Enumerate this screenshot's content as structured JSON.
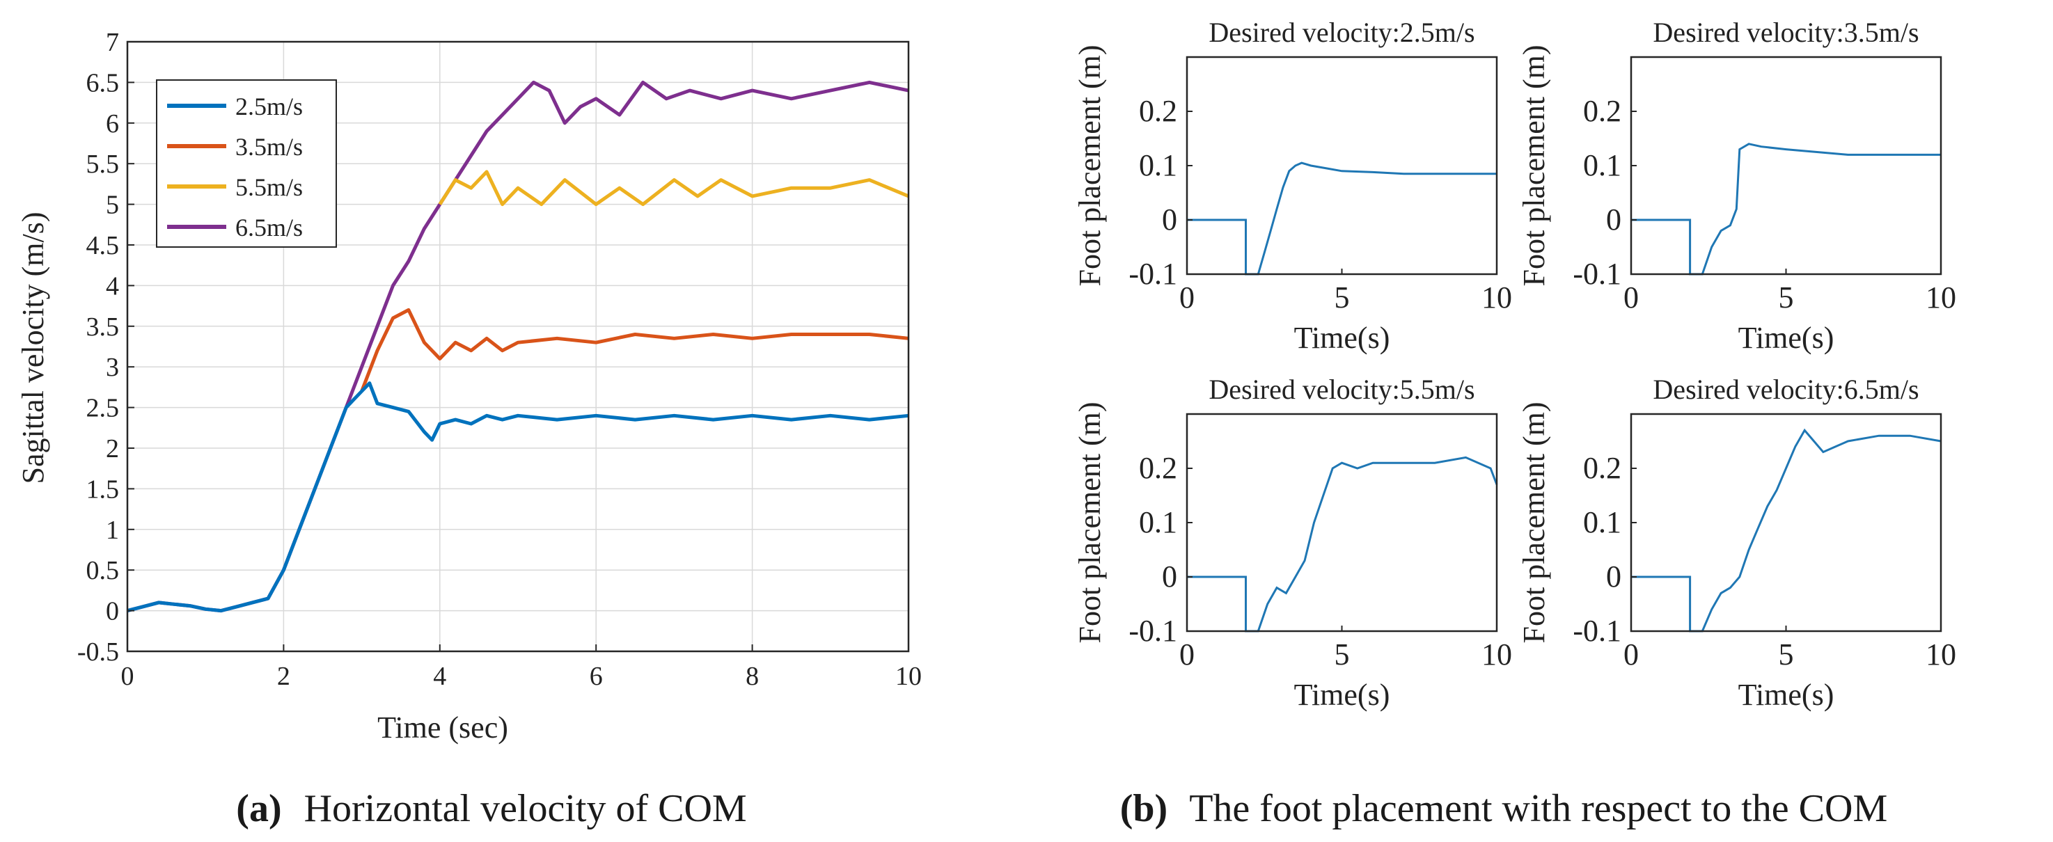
{
  "left": {
    "title": "",
    "xlabel": "Time (sec)",
    "ylabel": "Sagittal velocity (m/s)",
    "caption_letter": "(a)",
    "caption_text": "Horizontal velocity of COM"
  },
  "right": {
    "caption_letter": "(b)",
    "caption_text": "The foot placement with respect to the COM"
  },
  "colors": {
    "s25": "#0072BD",
    "s35": "#D95319",
    "s55": "#EDB120",
    "s65": "#7E2F8E",
    "foot": "#1f77b4"
  },
  "chart_data": [
    {
      "type": "line",
      "title": "",
      "xlabel": "Time (sec)",
      "ylabel": "Sagittal velocity (m/s)",
      "xlim": [
        0,
        10
      ],
      "ylim": [
        -0.5,
        7
      ],
      "xticks": [
        "0",
        "2",
        "4",
        "6",
        "8",
        "10"
      ],
      "yticks": [
        "-0.5",
        "0",
        "0.5",
        "1",
        "1.5",
        "2",
        "2.5",
        "3",
        "3.5",
        "4",
        "4.5",
        "5",
        "5.5",
        "6",
        "6.5",
        "7"
      ],
      "grid": true,
      "legend": "top-left",
      "series": [
        {
          "name": "2.5m/s",
          "color": "#0072BD",
          "x": [
            0,
            0.2,
            0.4,
            0.6,
            0.8,
            1.0,
            1.2,
            1.4,
            1.6,
            1.8,
            2.0,
            2.2,
            2.4,
            2.6,
            2.8,
            3.0,
            3.1,
            3.2,
            3.4,
            3.6,
            3.8,
            3.9,
            4.0,
            4.2,
            4.4,
            4.6,
            4.8,
            5.0,
            5.5,
            6.0,
            6.5,
            7.0,
            7.5,
            8.0,
            8.5,
            9.0,
            9.5,
            10.0
          ],
          "y": [
            0.0,
            0.05,
            0.1,
            0.08,
            0.06,
            0.02,
            0.0,
            0.05,
            0.1,
            0.15,
            0.5,
            1.0,
            1.5,
            2.0,
            2.5,
            2.7,
            2.8,
            2.55,
            2.5,
            2.45,
            2.2,
            2.1,
            2.3,
            2.35,
            2.3,
            2.4,
            2.35,
            2.4,
            2.35,
            2.4,
            2.35,
            2.4,
            2.35,
            2.4,
            2.35,
            2.4,
            2.35,
            2.4
          ]
        },
        {
          "name": "3.5m/s",
          "color": "#D95319",
          "x": [
            3.0,
            3.2,
            3.4,
            3.6,
            3.8,
            4.0,
            4.2,
            4.4,
            4.6,
            4.8,
            5.0,
            5.5,
            6.0,
            6.5,
            7.0,
            7.5,
            8.0,
            8.5,
            9.0,
            9.5,
            10.0
          ],
          "y": [
            2.7,
            3.2,
            3.6,
            3.7,
            3.3,
            3.1,
            3.3,
            3.2,
            3.35,
            3.2,
            3.3,
            3.35,
            3.3,
            3.4,
            3.35,
            3.4,
            3.35,
            3.4,
            3.4,
            3.4,
            3.35
          ]
        },
        {
          "name": "5.5m/s",
          "color": "#EDB120",
          "x": [
            4.0,
            4.2,
            4.4,
            4.6,
            4.8,
            5.0,
            5.3,
            5.6,
            6.0,
            6.3,
            6.6,
            7.0,
            7.3,
            7.6,
            8.0,
            8.5,
            9.0,
            9.5,
            10.0
          ],
          "y": [
            5.0,
            5.3,
            5.2,
            5.4,
            5.0,
            5.2,
            5.0,
            5.3,
            5.0,
            5.2,
            5.0,
            5.3,
            5.1,
            5.3,
            5.1,
            5.2,
            5.2,
            5.3,
            5.1
          ]
        },
        {
          "name": "6.5m/s",
          "color": "#7E2F8E",
          "x": [
            0,
            0.2,
            0.4,
            0.6,
            0.8,
            1.0,
            1.2,
            1.4,
            1.6,
            1.8,
            2.0,
            2.2,
            2.4,
            2.6,
            2.8,
            3.0,
            3.2,
            3.4,
            3.6,
            3.8,
            4.0,
            4.2,
            4.4,
            4.6,
            4.8,
            5.0,
            5.2,
            5.4,
            5.6,
            5.8,
            6.0,
            6.3,
            6.6,
            6.9,
            7.2,
            7.6,
            8.0,
            8.5,
            9.0,
            9.5,
            10.0
          ],
          "y": [
            0.0,
            0.05,
            0.1,
            0.08,
            0.06,
            0.02,
            0.0,
            0.05,
            0.1,
            0.15,
            0.5,
            1.0,
            1.5,
            2.0,
            2.5,
            3.0,
            3.5,
            4.0,
            4.3,
            4.7,
            5.0,
            5.3,
            5.6,
            5.9,
            6.1,
            6.3,
            6.5,
            6.4,
            6.0,
            6.2,
            6.3,
            6.1,
            6.5,
            6.3,
            6.4,
            6.3,
            6.4,
            6.3,
            6.4,
            6.5,
            6.4
          ]
        }
      ]
    },
    {
      "type": "line",
      "title": "Desired velocity:2.5m/s",
      "xlabel": "Time(s)",
      "ylabel": "Foot placement (m)",
      "xlim": [
        0,
        10
      ],
      "ylim": [
        -0.1,
        0.3
      ],
      "xticks": [
        "0",
        "5",
        "10"
      ],
      "yticks": [
        "-0.1",
        "0",
        "0.1",
        "0.2"
      ],
      "series": [
        {
          "name": "foot placement",
          "x": [
            0,
            1.9,
            1.9,
            2.3,
            2.5,
            2.7,
            2.9,
            3.1,
            3.3,
            3.5,
            3.7,
            4.0,
            4.5,
            5.0,
            6.0,
            7.0,
            8.0,
            9.0,
            10.0
          ],
          "y": [
            0,
            0,
            -0.1,
            -0.1,
            -0.06,
            -0.02,
            0.02,
            0.06,
            0.09,
            0.1,
            0.105,
            0.1,
            0.095,
            0.09,
            0.088,
            0.085,
            0.085,
            0.085,
            0.085
          ]
        }
      ]
    },
    {
      "type": "line",
      "title": "Desired velocity:3.5m/s",
      "xlabel": "Time(s)",
      "ylabel": "Foot placement (m)",
      "xlim": [
        0,
        10
      ],
      "ylim": [
        -0.1,
        0.3
      ],
      "xticks": [
        "0",
        "5",
        "10"
      ],
      "yticks": [
        "-0.1",
        "0",
        "0.1",
        "0.2"
      ],
      "series": [
        {
          "name": "foot placement",
          "x": [
            0,
            1.9,
            1.9,
            2.3,
            2.6,
            2.9,
            3.2,
            3.4,
            3.5,
            3.8,
            4.2,
            5.0,
            6.0,
            7.0,
            8.0,
            9.0,
            10.0
          ],
          "y": [
            0,
            0,
            -0.1,
            -0.1,
            -0.05,
            -0.02,
            -0.01,
            0.02,
            0.13,
            0.14,
            0.135,
            0.13,
            0.125,
            0.12,
            0.12,
            0.12,
            0.12
          ]
        }
      ]
    },
    {
      "type": "line",
      "title": "Desired velocity:5.5m/s",
      "xlabel": "Time(s)",
      "ylabel": "Foot placement (m)",
      "xlim": [
        0,
        10
      ],
      "ylim": [
        -0.1,
        0.3
      ],
      "xticks": [
        "0",
        "5",
        "10"
      ],
      "yticks": [
        "-0.1",
        "0",
        "0.1",
        "0.2"
      ],
      "series": [
        {
          "name": "foot placement",
          "x": [
            0,
            1.9,
            1.9,
            2.3,
            2.6,
            2.9,
            3.2,
            3.5,
            3.8,
            4.1,
            4.4,
            4.7,
            5.0,
            5.5,
            6.0,
            7.0,
            8.0,
            9.0,
            9.8,
            10.0
          ],
          "y": [
            0,
            0,
            -0.1,
            -0.1,
            -0.05,
            -0.02,
            -0.03,
            0.0,
            0.03,
            0.1,
            0.15,
            0.2,
            0.21,
            0.2,
            0.21,
            0.21,
            0.21,
            0.22,
            0.2,
            0.17
          ]
        }
      ]
    },
    {
      "type": "line",
      "title": "Desired velocity:6.5m/s",
      "xlabel": "Time(s)",
      "ylabel": "Foot placement (m)",
      "xlim": [
        0,
        10
      ],
      "ylim": [
        -0.1,
        0.3
      ],
      "xticks": [
        "0",
        "5",
        "10"
      ],
      "yticks": [
        "-0.1",
        "0",
        "0.1",
        "0.2"
      ],
      "series": [
        {
          "name": "foot placement",
          "x": [
            0,
            1.9,
            1.9,
            2.3,
            2.6,
            2.9,
            3.2,
            3.5,
            3.8,
            4.1,
            4.4,
            4.7,
            5.0,
            5.3,
            5.6,
            5.9,
            6.2,
            6.6,
            7.0,
            8.0,
            9.0,
            10.0
          ],
          "y": [
            0,
            0,
            -0.1,
            -0.1,
            -0.06,
            -0.03,
            -0.02,
            0.0,
            0.05,
            0.09,
            0.13,
            0.16,
            0.2,
            0.24,
            0.27,
            0.25,
            0.23,
            0.24,
            0.25,
            0.26,
            0.26,
            0.25
          ]
        }
      ]
    }
  ]
}
